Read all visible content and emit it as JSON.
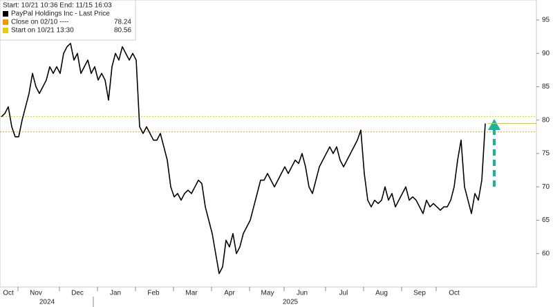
{
  "chart_data": {
    "type": "line",
    "title": "PayPal Holdings Inc - Last Price",
    "subtitle": "Start: 10/21 10:36 End: 11/15 16:03",
    "categories": [
      null,
      null,
      "Oct",
      null,
      null,
      null,
      null,
      null,
      null,
      null,
      "Nov",
      null,
      null,
      null,
      null,
      null,
      null,
      null,
      null,
      null,
      null,
      null,
      "Dec",
      null,
      null,
      null,
      null,
      null,
      null,
      null,
      null,
      null,
      null,
      "Jan",
      null,
      null,
      null,
      null,
      null,
      null,
      null,
      null,
      null,
      null,
      "Feb",
      null,
      null,
      null,
      null,
      null,
      null,
      null,
      null,
      null,
      null,
      "Mar",
      null,
      null,
      null,
      null,
      null,
      null,
      null,
      null,
      null,
      null,
      "Apr",
      null,
      null,
      null,
      null,
      null,
      null,
      null,
      null,
      null,
      null,
      "May",
      null,
      null,
      null,
      null,
      null,
      null,
      null,
      null,
      null,
      "Jun",
      null,
      null,
      null,
      null,
      null,
      null,
      null,
      null,
      null,
      null,
      null,
      "Jul",
      null,
      null,
      null,
      null,
      null,
      null,
      null,
      null,
      null,
      null,
      "Aug",
      null,
      null,
      null,
      null,
      null,
      null,
      null,
      null,
      null,
      null,
      "Sep",
      null,
      null,
      null,
      null,
      null,
      null,
      null,
      null,
      null,
      "Oct",
      null,
      null,
      null,
      null,
      null,
      null,
      null,
      null,
      null
    ],
    "year_labels": [
      "2024",
      "2025"
    ],
    "series": [
      {
        "name": "PayPal Holdings Inc - Last Price",
        "color": "#000000",
        "values": [
          80.5,
          81,
          82,
          79,
          77.5,
          77.5,
          80,
          82,
          84,
          87,
          85,
          84,
          85,
          86,
          88,
          87,
          88,
          87,
          90,
          91,
          91.5,
          89,
          90,
          87,
          88,
          89,
          87,
          88,
          86,
          87,
          86,
          83,
          88,
          90,
          89,
          91,
          90,
          89,
          90,
          89,
          79,
          78,
          79,
          78,
          77,
          77,
          78,
          76,
          74,
          70,
          68.5,
          69,
          68,
          69,
          69.5,
          69,
          70,
          71,
          70.5,
          67,
          65,
          63,
          60,
          57,
          58,
          62,
          61,
          63,
          60,
          61,
          63,
          64,
          65,
          67,
          69,
          71,
          71,
          72,
          71,
          70,
          71,
          72,
          73,
          72,
          73,
          74,
          73.5,
          75,
          73,
          70,
          69,
          71,
          73,
          74,
          75,
          76,
          75,
          76,
          74,
          73,
          74,
          75,
          76,
          77,
          78.5,
          72,
          68,
          67,
          68,
          67.5,
          68,
          70,
          68,
          69,
          67,
          68,
          69,
          70,
          68,
          68.5,
          68,
          67,
          66,
          68,
          67,
          67.5,
          67,
          66.5,
          67,
          67,
          68,
          70,
          74,
          77,
          70,
          68,
          66,
          69,
          68,
          71,
          79.5
        ]
      }
    ],
    "reference_lines": [
      {
        "label": "Close on 02/10 ----",
        "value": 78.24,
        "color": "#f29b00"
      },
      {
        "label": "Start on 10/21 13:30",
        "value": 80.56,
        "color": "#e6cf00"
      }
    ],
    "ylim": [
      55,
      98
    ],
    "yticks": [
      60,
      65,
      70,
      75,
      80,
      85,
      90,
      95
    ],
    "grid": false
  }
}
